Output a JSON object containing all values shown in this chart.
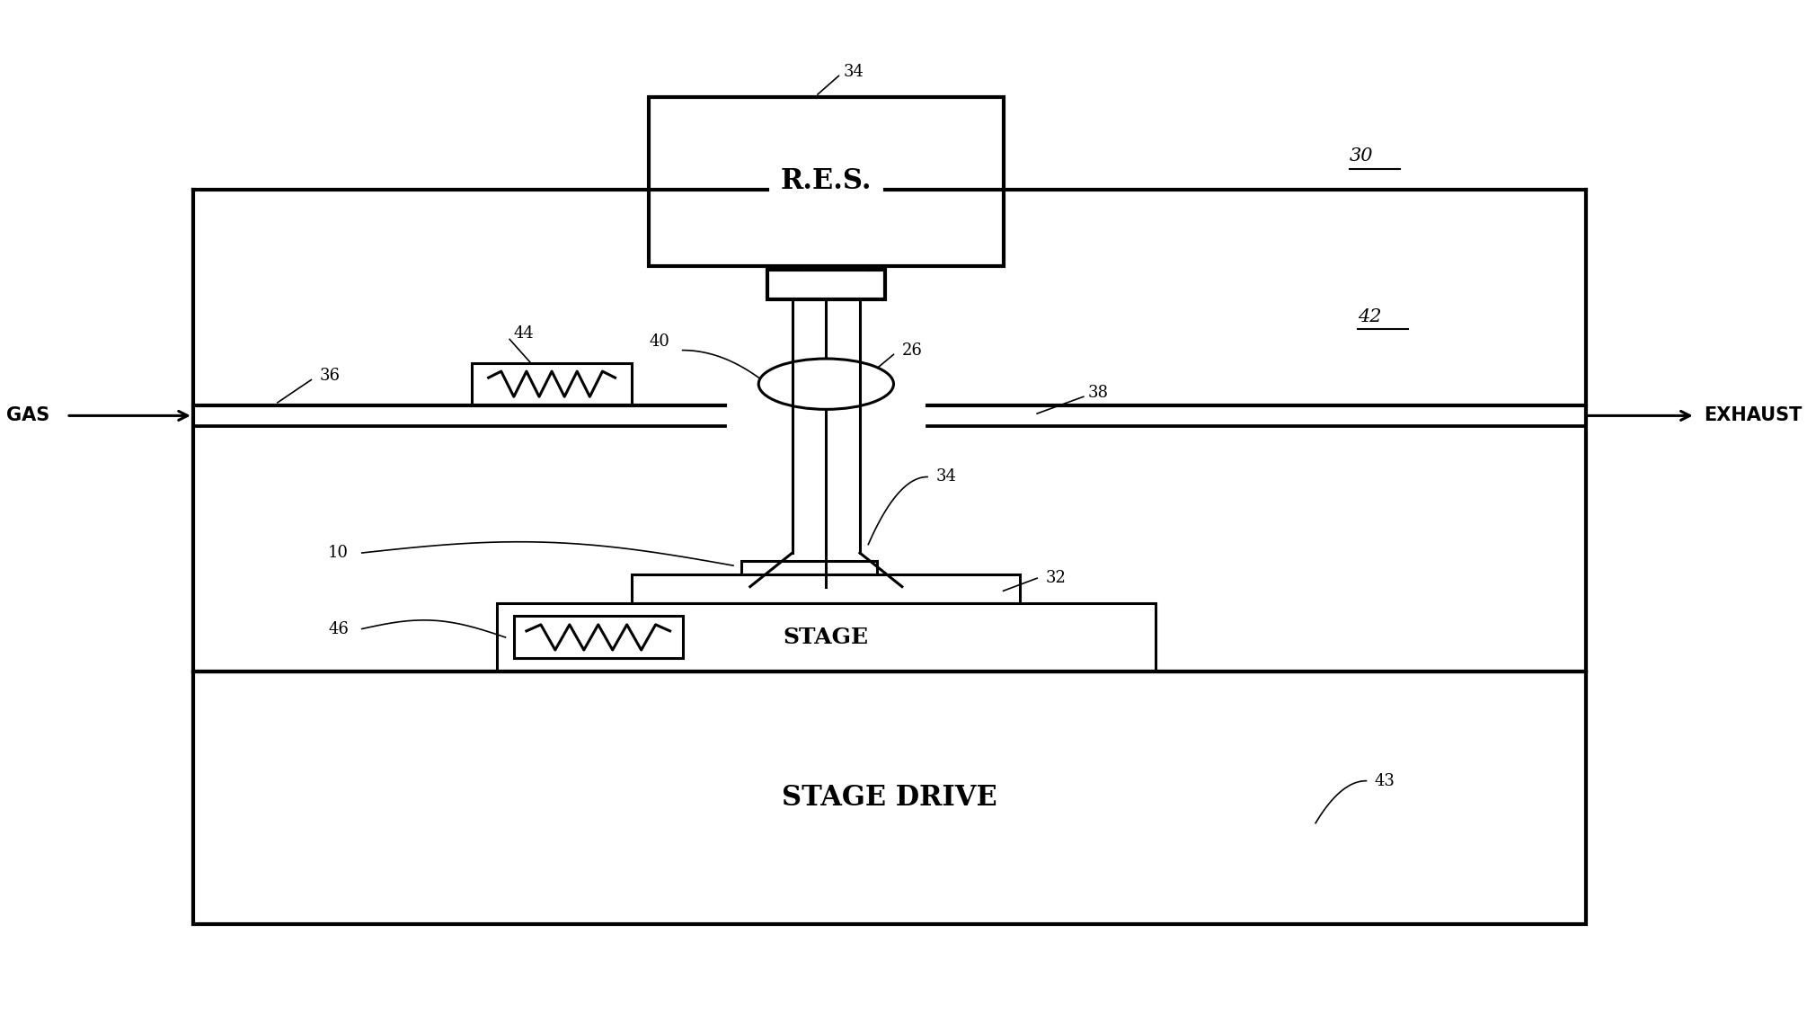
{
  "bg_color": "#ffffff",
  "lw": 2.2,
  "tlw": 3.0,
  "fig_width": 20.11,
  "fig_height": 11.38,
  "labels": {
    "RES": "R.E.S.",
    "STAGE_DRIVE": "STAGE DRIVE",
    "STAGE": "STAGE",
    "GAS": "GAS",
    "EXHAUST": "EXHAUST",
    "n34t": "34",
    "n30": "30",
    "n26": "26",
    "n42": "42",
    "n40": "40",
    "n44": "44",
    "n36": "36",
    "n38": "38",
    "n34m": "34",
    "n10": "10",
    "n32": "32",
    "n46": "46",
    "n43": "43"
  }
}
